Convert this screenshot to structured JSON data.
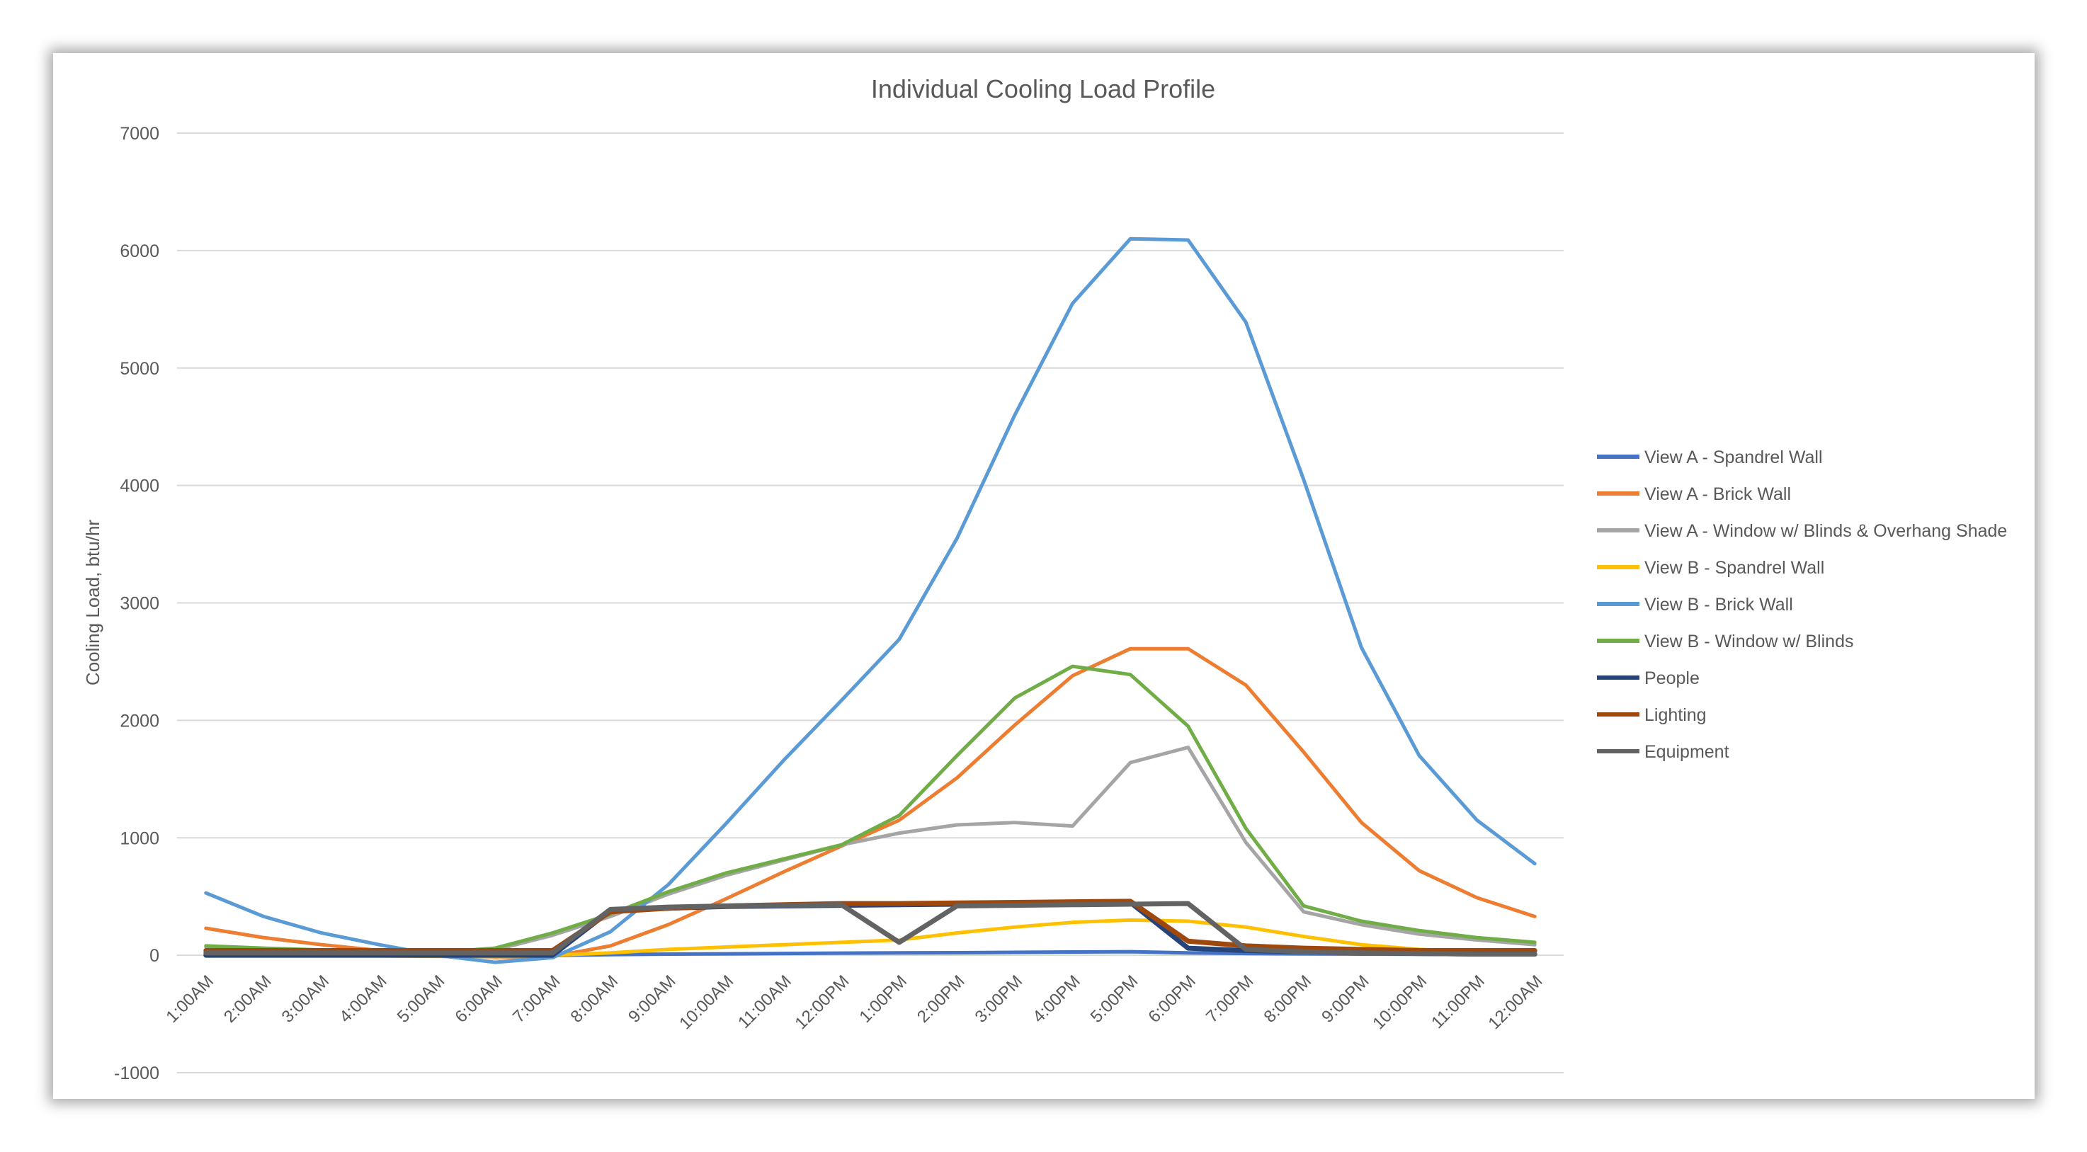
{
  "chart_data": {
    "type": "line",
    "title": "Individual Cooling Load Profile",
    "xlabel": "",
    "ylabel": "Cooling Load, btu/hr",
    "ylim": [
      -1000,
      7000
    ],
    "yticks": [
      -1000,
      0,
      1000,
      2000,
      3000,
      4000,
      5000,
      6000,
      7000
    ],
    "grid": true,
    "legend_position": "right",
    "categories": [
      "1:00AM",
      "2:00AM",
      "3:00AM",
      "4:00AM",
      "5:00AM",
      "6:00AM",
      "7:00AM",
      "8:00AM",
      "9:00AM",
      "10:00AM",
      "11:00AM",
      "12:00PM",
      "1:00PM",
      "2:00PM",
      "3:00PM",
      "4:00PM",
      "5:00PM",
      "6:00PM",
      "7:00PM",
      "8:00PM",
      "9:00PM",
      "10:00PM",
      "11:00PM",
      "12:00AM"
    ],
    "series": [
      {
        "name": "View A - Spandrel Wall",
        "color": "#4472C4",
        "values": [
          10,
          8,
          5,
          3,
          0,
          -5,
          -2,
          5,
          10,
          12,
          15,
          18,
          20,
          22,
          25,
          28,
          30,
          20,
          15,
          12,
          10,
          8,
          6,
          5
        ]
      },
      {
        "name": "View A - Brick Wall",
        "color": "#ED7D31",
        "values": [
          230,
          150,
          90,
          40,
          10,
          -20,
          -10,
          80,
          260,
          480,
          710,
          930,
          1150,
          1510,
          1960,
          2380,
          2610,
          2610,
          2300,
          1730,
          1130,
          720,
          490,
          330
        ]
      },
      {
        "name": "View A - Window w/ Blinds & Overhang Shade",
        "color": "#A5A5A5",
        "values": [
          70,
          50,
          40,
          30,
          20,
          45,
          170,
          330,
          520,
          680,
          810,
          940,
          1040,
          1110,
          1130,
          1100,
          1640,
          1770,
          960,
          370,
          260,
          180,
          130,
          90
        ]
      },
      {
        "name": "View B - Spandrel Wall",
        "color": "#FFC000",
        "values": [
          10,
          5,
          0,
          -5,
          -10,
          -15,
          0,
          20,
          50,
          70,
          90,
          110,
          130,
          190,
          240,
          280,
          300,
          290,
          240,
          160,
          90,
          50,
          30,
          20
        ]
      },
      {
        "name": "View B - Brick Wall",
        "color": "#5B9BD5",
        "values": [
          530,
          330,
          190,
          90,
          0,
          -60,
          -20,
          200,
          600,
          1120,
          1660,
          2170,
          2690,
          3550,
          4600,
          5550,
          6100,
          6090,
          5390,
          4050,
          2620,
          1700,
          1150,
          780
        ]
      },
      {
        "name": "View B - Window w/ Blinds",
        "color": "#70AD47",
        "values": [
          80,
          60,
          45,
          35,
          25,
          60,
          190,
          350,
          540,
          700,
          820,
          940,
          1190,
          1700,
          2190,
          2460,
          2390,
          1950,
          1080,
          420,
          290,
          210,
          150,
          110
        ]
      },
      {
        "name": "People",
        "color": "#264478",
        "values": [
          0,
          0,
          0,
          0,
          0,
          0,
          0,
          380,
          400,
          415,
          420,
          425,
          430,
          435,
          440,
          445,
          450,
          60,
          40,
          30,
          20,
          15,
          10,
          10
        ]
      },
      {
        "name": "Lighting",
        "color": "#9E480E",
        "values": [
          40,
          40,
          40,
          40,
          40,
          40,
          40,
          370,
          400,
          420,
          430,
          440,
          440,
          445,
          450,
          455,
          460,
          120,
          80,
          60,
          50,
          40,
          40,
          40
        ]
      },
      {
        "name": "Equipment",
        "color": "#636363",
        "values": [
          20,
          20,
          20,
          20,
          20,
          20,
          20,
          390,
          410,
          420,
          425,
          430,
          110,
          420,
          425,
          430,
          435,
          440,
          50,
          30,
          20,
          15,
          10,
          10
        ]
      }
    ]
  }
}
